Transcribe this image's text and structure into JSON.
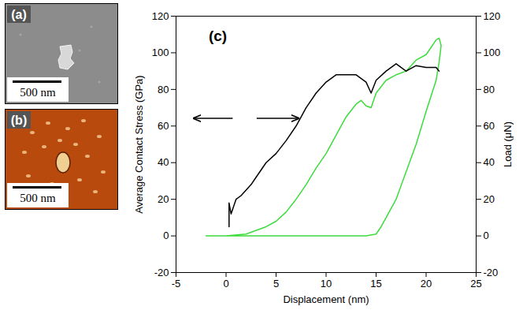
{
  "panels": [
    {
      "label": "(a)",
      "scale_bar": "500 nm"
    },
    {
      "label": "(b)",
      "scale_bar": "500 nm"
    }
  ],
  "chart_data": {
    "type": "line",
    "annotations": [
      "(c)"
    ],
    "x_label": "Displacement (nm)",
    "y_label": "Average Contact Stress (GPa)",
    "y2_label": "Load (μN)",
    "xlim": [
      -5,
      25
    ],
    "xticks": [
      -5,
      0,
      5,
      10,
      15,
      20,
      25
    ],
    "ylim": [
      -20,
      120
    ],
    "yticks": [
      -20,
      0,
      20,
      40,
      60,
      80,
      100,
      120
    ],
    "y2lim": [
      -20,
      120
    ],
    "y2ticks": [
      -20,
      0,
      20,
      40,
      60,
      80,
      100,
      120
    ],
    "grid": false,
    "series": [
      {
        "color": "#000000",
        "axis": "y",
        "x": [
          0.3,
          0.3,
          0.5,
          1,
          1.5,
          2,
          2.5,
          3,
          4,
          5,
          6,
          7,
          8,
          9,
          10,
          11,
          12,
          13,
          14,
          14.5,
          15,
          16,
          17,
          18,
          19,
          20,
          21,
          21.3
        ],
        "values": [
          5,
          18,
          12,
          20,
          22,
          25,
          28,
          32,
          40,
          45,
          52,
          60,
          70,
          78,
          84,
          88,
          88,
          88,
          84,
          78,
          85,
          90,
          94,
          90,
          93,
          92,
          92,
          90
        ]
      },
      {
        "color": "#3cdc3c",
        "axis": "y2",
        "x": [
          -2,
          0,
          2,
          4,
          5,
          6,
          7,
          8,
          9,
          10,
          11,
          12,
          13,
          13.5,
          14,
          14.5,
          15,
          16,
          17,
          18,
          19,
          20,
          20.5,
          21,
          21.3,
          21.5,
          21.3,
          21,
          20,
          19,
          18,
          17,
          16,
          15.5,
          15,
          14,
          10,
          5,
          0,
          -2
        ],
        "values": [
          0,
          0,
          1,
          5,
          8,
          13,
          20,
          28,
          37,
          45,
          55,
          65,
          72,
          74,
          71,
          70,
          78,
          85,
          88,
          90,
          96,
          99,
          103,
          107,
          108,
          104,
          95,
          85,
          68,
          50,
          35,
          20,
          10,
          5,
          1,
          0,
          0,
          0,
          0,
          0
        ]
      }
    ]
  }
}
